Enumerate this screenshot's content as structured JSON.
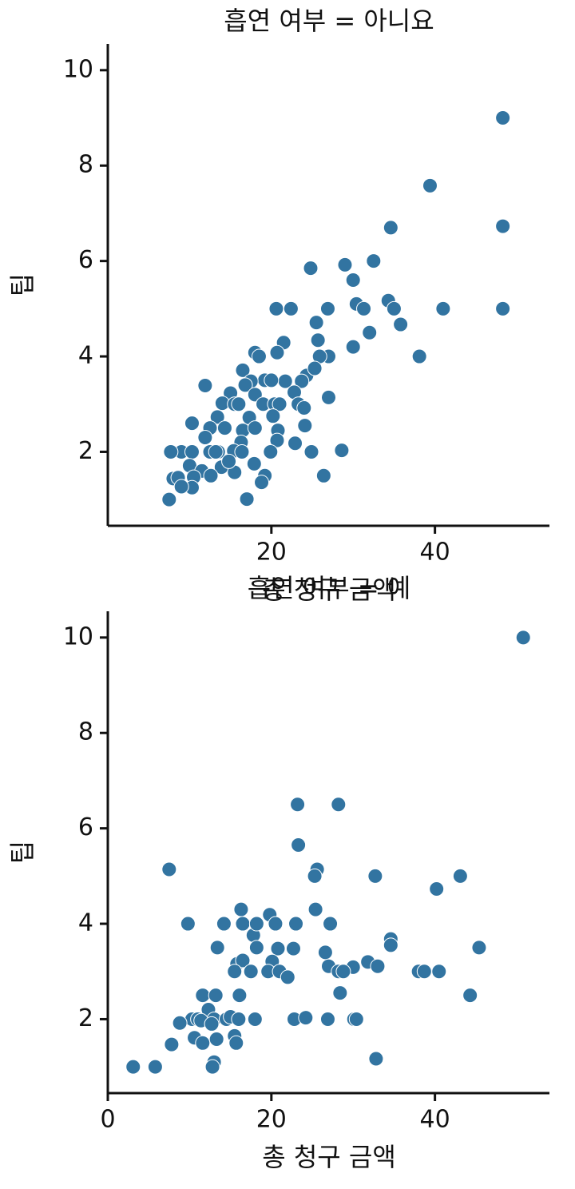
{
  "chart_data": [
    {
      "type": "scatter",
      "title": "흡연 여부 = 아니요",
      "x_label": "총 청구 금액",
      "y_label": "팁",
      "color": "#3274a1",
      "x": [
        48.3,
        39.4,
        48.3,
        34.6,
        32.5,
        29,
        24.8,
        30,
        48.3,
        41,
        34.3,
        35,
        30.4,
        31.3,
        26.9,
        20.6,
        22.4,
        35.8,
        32,
        25.5,
        25.7,
        30,
        38.1,
        27,
        25.9,
        21.5,
        20.7,
        18,
        18.5,
        16.5,
        24.3,
        25.3,
        23.7,
        21.7,
        22.8,
        27,
        19.2,
        20,
        17.5,
        16.8,
        11.9,
        18,
        15,
        14,
        15.5,
        16,
        19,
        20.4,
        21,
        23.3,
        24,
        20.2,
        17.3,
        13.4,
        12.5,
        14.3,
        16.5,
        18,
        20.8,
        24.1,
        10.3,
        16.3,
        20.7,
        22.9,
        11.9,
        9,
        7.7,
        10.3,
        12.5,
        13.5,
        15.4,
        16.4,
        19.9,
        24.9,
        28.6,
        13.9,
        15.5,
        17.9,
        10,
        11.5,
        8,
        8.6,
        10.5,
        19.2,
        18.8,
        10.3,
        9,
        26.4,
        7.5,
        17,
        12.6,
        14.8,
        13.2
      ],
      "values": [
        9,
        7.58,
        6.73,
        6.7,
        6,
        5.92,
        5.85,
        5.6,
        5,
        5,
        5.17,
        5,
        5.1,
        5,
        5,
        5,
        5,
        4.67,
        4.5,
        4.71,
        4.34,
        4.2,
        4,
        4,
        4,
        4.29,
        4.08,
        4.08,
        4,
        3.71,
        3.6,
        3.75,
        3.48,
        3.48,
        3.25,
        3.14,
        3.5,
        3.5,
        3.48,
        3.4,
        3.39,
        3.2,
        3.23,
        3.02,
        3,
        3,
        3,
        3,
        3,
        3,
        2.92,
        2.75,
        2.72,
        2.73,
        2.5,
        2.5,
        2.45,
        2.5,
        2.45,
        2.55,
        2.6,
        2.2,
        2.24,
        2.18,
        2.3,
        2,
        2,
        2,
        2,
        2,
        2.02,
        2,
        2,
        2,
        2.03,
        1.68,
        1.57,
        1.75,
        1.71,
        1.6,
        1.44,
        1.46,
        1.47,
        1.5,
        1.36,
        1.25,
        1.27,
        1.5,
        1,
        1.01,
        1.5,
        1.8,
        2
      ],
      "xlim": [
        0,
        54
      ],
      "xticks": [
        20,
        40
      ],
      "ylim": [
        0.45,
        10.55
      ],
      "yticks": [
        2,
        4,
        6,
        8,
        10
      ]
    },
    {
      "type": "scatter",
      "title": "흡연 여부 = 예",
      "x_label": "총 청구 금액",
      "y_label": "팁",
      "color": "#3274a1",
      "x": [
        50.8,
        23.2,
        28.2,
        23.3,
        25.6,
        25.3,
        32.7,
        43.1,
        40.2,
        7.5,
        9.8,
        14.2,
        16.3,
        16.5,
        19.8,
        20.5,
        23,
        25.4,
        27.2,
        17.8,
        18.2,
        45.4,
        34.6,
        34.6,
        13.4,
        18.2,
        20.8,
        22.7,
        26.6,
        15.8,
        16.5,
        20.1,
        31.8,
        33,
        27,
        30,
        28.2,
        28.8,
        15.5,
        17.5,
        19.6,
        21,
        22,
        38,
        38.7,
        40.5,
        28.4,
        44.3,
        11.6,
        13.2,
        16.1,
        12.3,
        13,
        10.3,
        11,
        14.5,
        15,
        16,
        18,
        22.8,
        24.2,
        26.9,
        30.1,
        30.4,
        8.8,
        11.4,
        12.7,
        15.5,
        10.6,
        11.6,
        13.3,
        15.7,
        7.8,
        13,
        12.8,
        3.1,
        5.8,
        32.8
      ],
      "values": [
        10,
        6.5,
        6.5,
        5.65,
        5.14,
        5,
        5,
        5,
        4.73,
        5.14,
        4,
        4,
        4.3,
        4,
        4.19,
        4,
        4,
        4.3,
        4,
        3.76,
        4,
        3.5,
        3.68,
        3.55,
        3.5,
        3.5,
        3.48,
        3.48,
        3.4,
        3.16,
        3.23,
        3.21,
        3.2,
        3.11,
        3.11,
        3.09,
        3,
        3,
        3,
        3,
        3,
        3,
        2.88,
        3,
        3,
        3,
        2.55,
        2.5,
        2.5,
        2.5,
        2.5,
        2.2,
        2,
        2,
        2,
        2,
        2.05,
        2,
        2,
        2,
        2.03,
        2,
        2,
        2,
        1.92,
        1.97,
        1.9,
        1.65,
        1.61,
        1.5,
        1.58,
        1.5,
        1.47,
        1.1,
        1,
        1,
        1,
        1.17
      ],
      "xlim": [
        0,
        54
      ],
      "xticks": [
        0,
        20,
        40
      ],
      "ylim": [
        0.45,
        10.55
      ],
      "yticks": [
        2,
        4,
        6,
        8,
        10
      ]
    }
  ]
}
